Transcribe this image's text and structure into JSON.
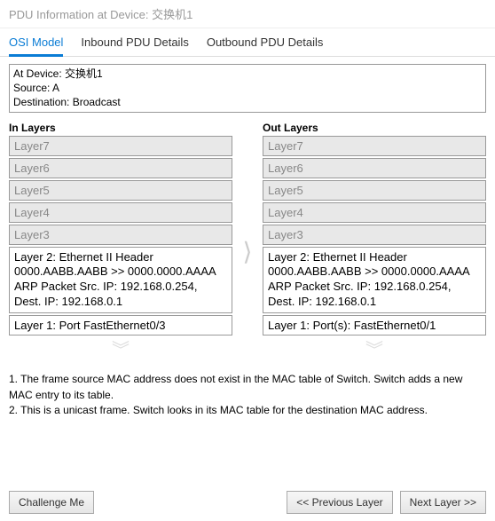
{
  "window": {
    "title": "PDU Information at Device: 交换机1"
  },
  "tabs": {
    "osi": "OSI Model",
    "inbound": "Inbound PDU Details",
    "outbound": "Outbound PDU Details"
  },
  "device_info": {
    "line1": "At Device: 交换机1",
    "line2": "Source: A",
    "line3": "Destination: Broadcast"
  },
  "in_layers": {
    "title": "In Layers",
    "l7": "Layer7",
    "l6": "Layer6",
    "l5": "Layer5",
    "l4": "Layer4",
    "l3": "Layer3",
    "l2_a": "Layer 2: Ethernet II Header",
    "l2_b": "0000.AABB.AABB >> 0000.0000.AAAA",
    "l2_c": "ARP Packet Src. IP: 192.168.0.254,",
    "l2_d": "Dest. IP: 192.168.0.1",
    "l1": "Layer 1: Port FastEthernet0/3"
  },
  "out_layers": {
    "title": "Out Layers",
    "l7": "Layer7",
    "l6": "Layer6",
    "l5": "Layer5",
    "l4": "Layer4",
    "l3": "Layer3",
    "l2_a": "Layer 2: Ethernet II Header",
    "l2_b": "0000.AABB.AABB >> 0000.0000.AAAA",
    "l2_c": "ARP Packet Src. IP: 192.168.0.254,",
    "l2_d": "Dest. IP: 192.168.0.1",
    "l1": "Layer 1: Port(s): FastEthernet0/1"
  },
  "notes": {
    "n1": "1. The frame source MAC address does not exist in the MAC table of Switch. Switch adds a new MAC entry to its table.",
    "n2": "2. This is a unicast frame. Switch looks in its MAC table for the destination MAC address."
  },
  "buttons": {
    "challenge": "Challenge Me",
    "prev": "<< Previous Layer",
    "next": "Next Layer >>"
  }
}
